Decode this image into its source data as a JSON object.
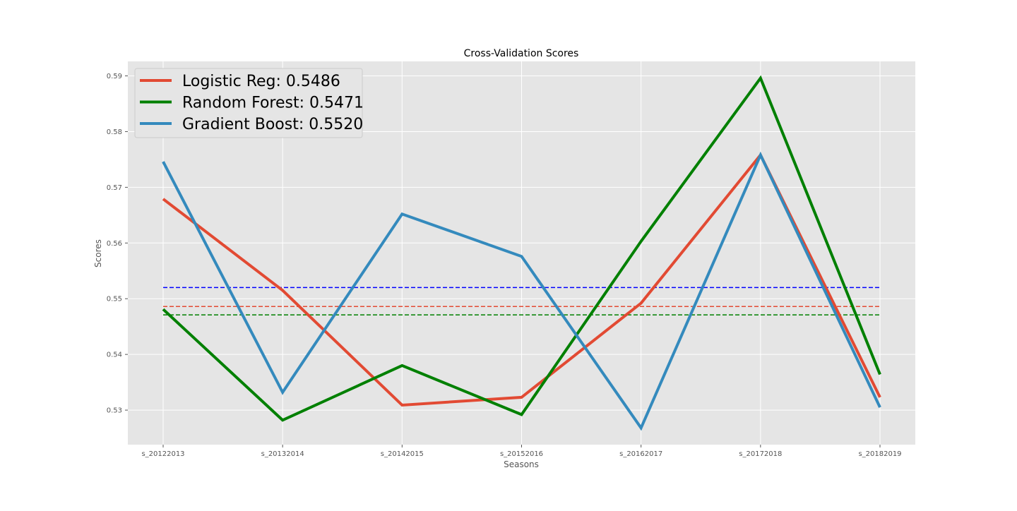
{
  "chart_data": {
    "type": "line",
    "title": "Cross-Validation Scores",
    "xlabel": "Seasons",
    "ylabel": "Scores",
    "categories": [
      "s_20122013",
      "s_20132014",
      "s_20142015",
      "s_20152016",
      "s_20162017",
      "s_20172018",
      "s_20182019"
    ],
    "ylim": [
      0.5238,
      0.5926
    ],
    "yticks": [
      0.53,
      0.54,
      0.55,
      0.56,
      0.57,
      0.58,
      0.59
    ],
    "ytick_labels": [
      "0.53",
      "0.54",
      "0.55",
      "0.56",
      "0.57",
      "0.58",
      "0.59"
    ],
    "grid": true,
    "legend_position": "top-left",
    "series": [
      {
        "name": "Logistic Reg: 0.5486",
        "color": "#e24a33",
        "mean": 0.5486,
        "values": [
          0.5679,
          0.5515,
          0.5309,
          0.5323,
          0.5492,
          0.5758,
          0.5323
        ]
      },
      {
        "name": "Random Forest: 0.5471",
        "color": "#008000",
        "mean": 0.5471,
        "values": [
          0.5481,
          0.5282,
          0.538,
          0.5292,
          0.5603,
          0.5896,
          0.5364
        ]
      },
      {
        "name": "Gradient Boost: 0.5520",
        "color": "#348abd",
        "mean": 0.552,
        "values": [
          0.5746,
          0.5332,
          0.5652,
          0.5576,
          0.5268,
          0.5758,
          0.5305
        ]
      }
    ],
    "mean_line_colors": [
      "#e24a33",
      "#008000",
      "#0000ff"
    ]
  }
}
